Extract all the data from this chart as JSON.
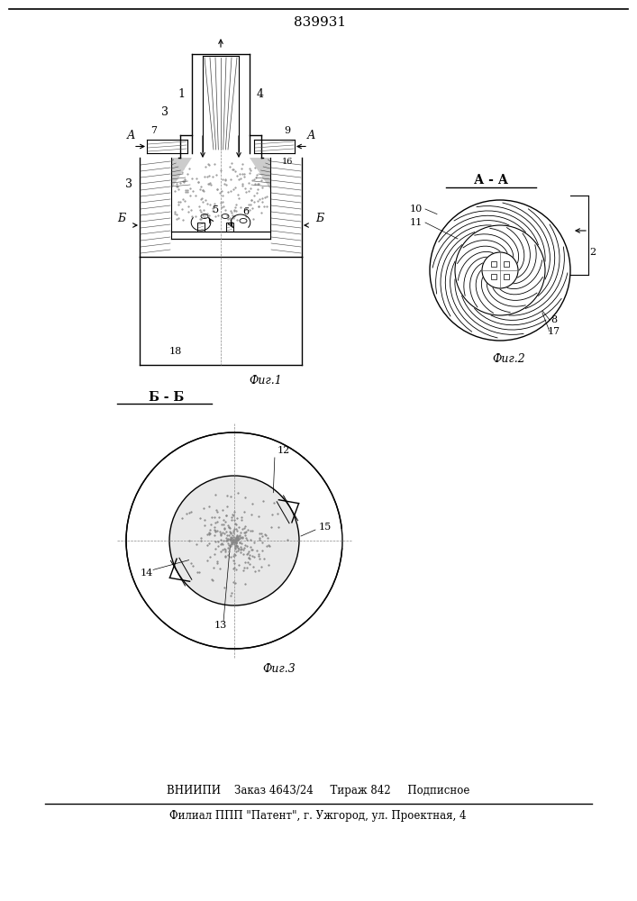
{
  "patent_number": "839931",
  "bg_color": "#ffffff",
  "line_color": "#000000",
  "fig1_label": "Фиг.1",
  "fig2_label": "Фиг.2",
  "fig3_label": "Фиг.3",
  "section_aa": "А - А",
  "section_bb": "Б - Б",
  "footer_line1": "ВНИИПИ    Заказ 4643/24     Тираж 842     Подписное",
  "footer_line2": "Филиал ППП \"Патент\", г. Ужгород, ул. Проектная, 4"
}
